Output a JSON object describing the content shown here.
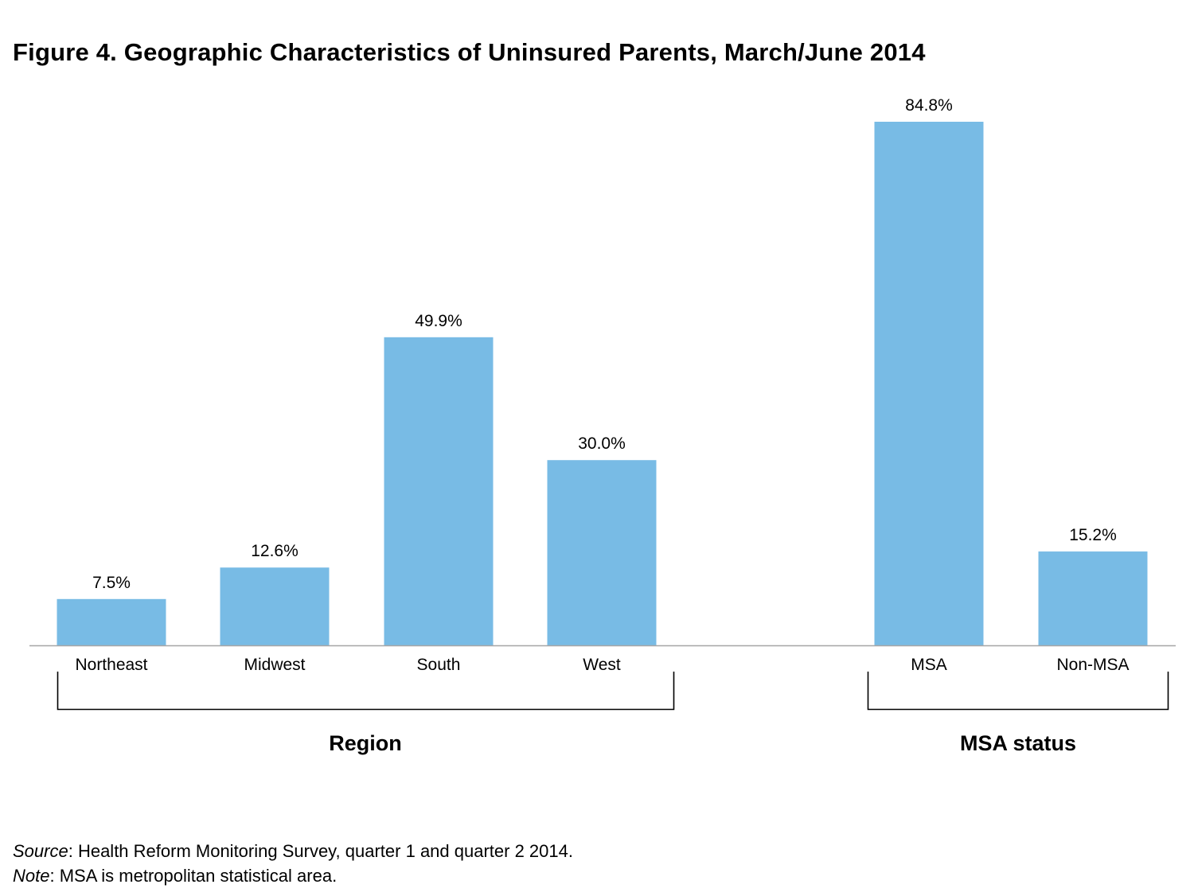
{
  "figure": {
    "title": "Figure 4. Geographic Characteristics of Uninsured Parents, March/June 2014"
  },
  "chart_data": {
    "type": "bar",
    "categories": [
      "Northeast",
      "Midwest",
      "South",
      "West",
      "MSA",
      "Non-MSA"
    ],
    "values": [
      7.5,
      12.6,
      49.9,
      30.0,
      84.8,
      15.2
    ],
    "value_labels": [
      "7.5%",
      "12.6%",
      "49.9%",
      "30.0%",
      "84.8%",
      "15.2%"
    ],
    "groups": [
      {
        "label": "Region",
        "categories": [
          "Northeast",
          "Midwest",
          "South",
          "West"
        ]
      },
      {
        "label": "MSA status",
        "categories": [
          "MSA",
          "Non-MSA"
        ]
      }
    ],
    "ylim": [
      0,
      84.8
    ],
    "grid": false,
    "legend": "none",
    "bar_color": "#78bbe5"
  },
  "footnotes": {
    "source_label": "Source",
    "source_text": ": Health Reform Monitoring Survey, quarter 1 and quarter 2 2014.",
    "note_label": "Note",
    "note_text": ": MSA is metropolitan statistical area."
  }
}
